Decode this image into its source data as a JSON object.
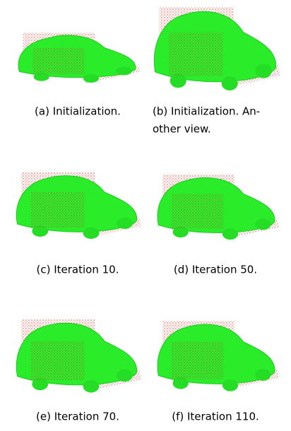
{
  "figure": {
    "panels": [
      {
        "caption": [
          "(a) Initialization."
        ]
      },
      {
        "caption": [
          "(b) Initialization. An-",
          "other view."
        ]
      },
      {
        "caption": [
          "(c) Iteration 10."
        ]
      },
      {
        "caption": [
          "(d) Iteration 50."
        ]
      },
      {
        "caption": [
          "(e) Iteration 70."
        ]
      },
      {
        "caption": [
          "(f) Iteration 110."
        ]
      }
    ]
  }
}
